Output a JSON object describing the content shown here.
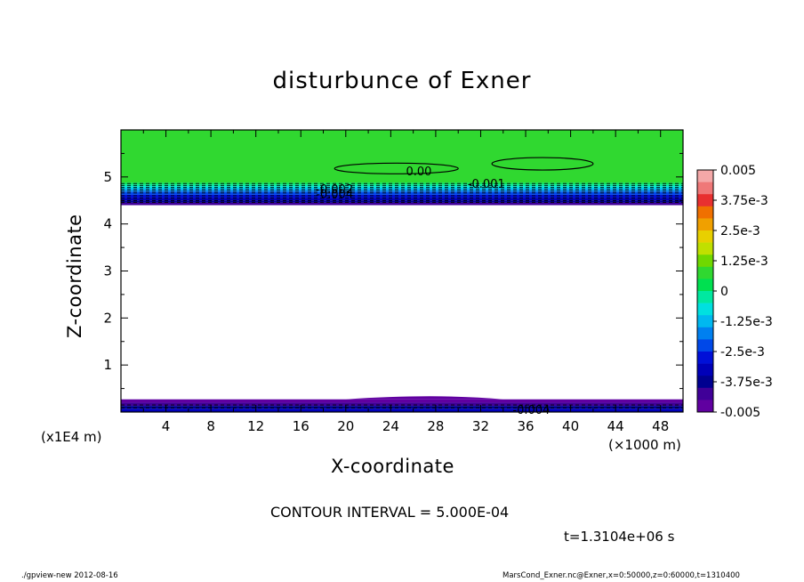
{
  "chart_data": {
    "type": "contour",
    "title": "disturbunce of Exner",
    "xlabel": "X-coordinate",
    "ylabel": "Z-coordinate",
    "x_unit_label": "(×1000 m)",
    "y_unit_label": "(x1E4 m)",
    "xlim": [
      0,
      50
    ],
    "ylim": [
      0,
      6
    ],
    "x_ticks": [
      "4",
      "8",
      "12",
      "16",
      "20",
      "24",
      "28",
      "32",
      "36",
      "40",
      "44",
      "48"
    ],
    "y_ticks": [
      "1",
      "2",
      "3",
      "4",
      "5"
    ],
    "colorbar": {
      "labels": [
        "0.005",
        "3.75e-3",
        "2.5e-3",
        "1.25e-3",
        "0",
        "-1.25e-3",
        "-2.5e-3",
        "-3.75e-3",
        "-0.005"
      ],
      "range": [
        -0.005,
        0.005
      ],
      "colors": [
        "#f4a8a8",
        "#ef7878",
        "#e83030",
        "#f07000",
        "#f0a000",
        "#e8d000",
        "#c0e000",
        "#70d800",
        "#30d830",
        "#00e050",
        "#00e8a0",
        "#00e0e0",
        "#00b8f0",
        "#0080f0",
        "#0048e8",
        "#0010d8",
        "#0000b8",
        "#000090",
        "#400098",
        "#6000a0"
      ]
    },
    "contour_labels": [
      {
        "text": "0.00",
        "x": 26.5,
        "y": 5.1
      },
      {
        "text": "-0.001",
        "x": 32.5,
        "y": 4.84
      },
      {
        "text": "-0.002",
        "x": 19,
        "y": 4.72
      },
      {
        "text": "-0.004",
        "x": 19,
        "y": 4.62
      },
      {
        "text": "-0.004",
        "x": 36.5,
        "y": 0.03
      }
    ],
    "annotations": {
      "contour_interval": "CONTOUR INTERVAL = 5.000E-04",
      "time": "t=1.3104e+06 s"
    }
  },
  "footer": {
    "left": "./gpview-new  2012-08-16",
    "right": "MarsCond_Exner.nc@Exner,x=0:50000,z=0:60000,t=1310400"
  }
}
